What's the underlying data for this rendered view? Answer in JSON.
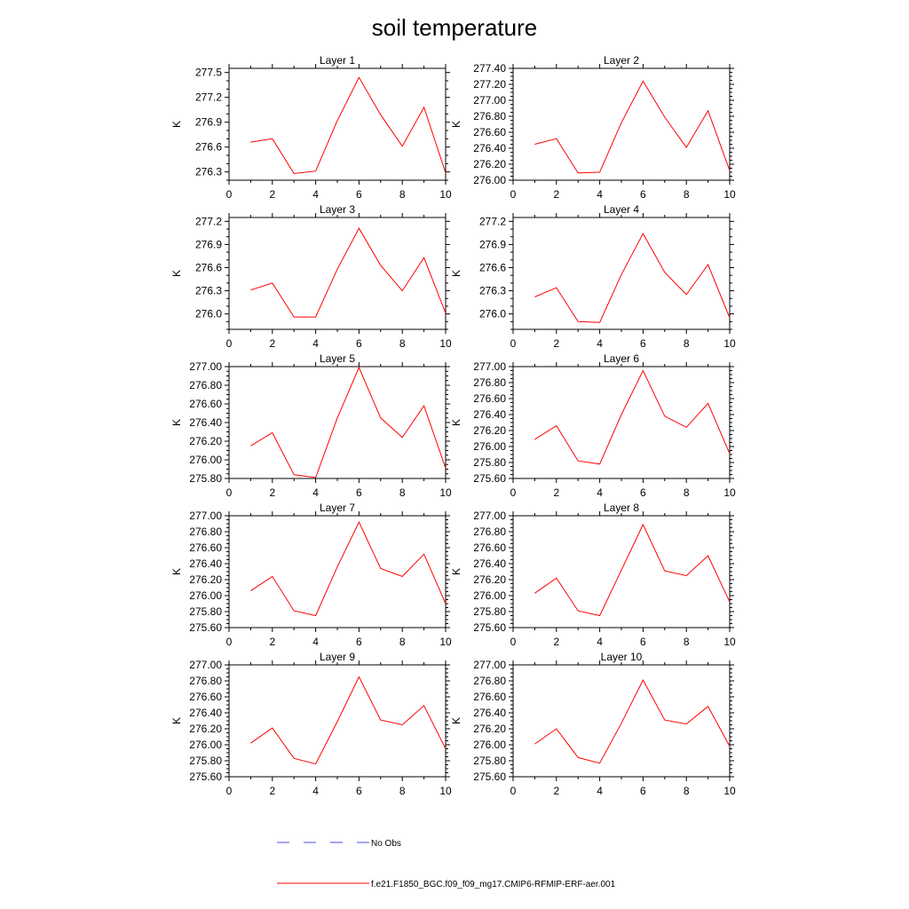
{
  "figure": {
    "title": "soil temperature"
  },
  "chart_data": [
    {
      "type": "line",
      "title": "Layer 1",
      "xlabel": "",
      "ylabel": "K",
      "xlim": [
        0,
        10
      ],
      "xticks": [
        0,
        2,
        4,
        6,
        8,
        10
      ],
      "xminor": 1,
      "ylim": [
        276.2,
        277.55
      ],
      "yticks": [
        276.3,
        276.6,
        276.9,
        277.2,
        277.5
      ],
      "ytick_labels": [
        "276.3",
        "276.6",
        "276.9",
        "277.2",
        "277.5"
      ],
      "yminor": 0.1,
      "series": [
        {
          "x": [
            1,
            2,
            3,
            4,
            5,
            6,
            7,
            8,
            9,
            10
          ],
          "values": [
            276.66,
            276.7,
            276.28,
            276.31,
            276.92,
            277.44,
            276.99,
            276.61,
            277.08,
            276.29
          ]
        }
      ]
    },
    {
      "type": "line",
      "title": "Layer 2",
      "xlabel": "",
      "ylabel": "K",
      "xlim": [
        0,
        10
      ],
      "xticks": [
        0,
        2,
        4,
        6,
        8,
        10
      ],
      "xminor": 1,
      "ylim": [
        276.0,
        277.4
      ],
      "yticks": [
        276.0,
        276.2,
        276.4,
        276.6,
        276.8,
        277.0,
        277.2,
        277.4
      ],
      "ytick_labels": [
        "276.00",
        "276.20",
        "276.40",
        "276.60",
        "276.80",
        "277.00",
        "277.20",
        "277.40"
      ],
      "yminor": 0.05,
      "series": [
        {
          "x": [
            1,
            2,
            3,
            4,
            5,
            6,
            7,
            8,
            9,
            10
          ],
          "values": [
            276.45,
            276.52,
            276.09,
            276.1,
            276.72,
            277.24,
            276.79,
            276.41,
            276.87,
            276.12
          ]
        }
      ]
    },
    {
      "type": "line",
      "title": "Layer 3",
      "xlabel": "",
      "ylabel": "K",
      "xlim": [
        0,
        10
      ],
      "xticks": [
        0,
        2,
        4,
        6,
        8,
        10
      ],
      "xminor": 1,
      "ylim": [
        275.8,
        277.25
      ],
      "yticks": [
        276.0,
        276.3,
        276.6,
        276.9,
        277.2
      ],
      "ytick_labels": [
        "276.0",
        "276.3",
        "276.6",
        "276.9",
        "277.2"
      ],
      "yminor": 0.1,
      "series": [
        {
          "x": [
            1,
            2,
            3,
            4,
            5,
            6,
            7,
            8,
            9,
            10
          ],
          "values": [
            276.31,
            276.4,
            275.96,
            275.96,
            276.58,
            277.11,
            276.63,
            276.3,
            276.73,
            276.01
          ]
        }
      ]
    },
    {
      "type": "line",
      "title": "Layer 4",
      "xlabel": "",
      "ylabel": "K",
      "xlim": [
        0,
        10
      ],
      "xticks": [
        0,
        2,
        4,
        6,
        8,
        10
      ],
      "xminor": 1,
      "ylim": [
        275.8,
        277.25
      ],
      "yticks": [
        276.0,
        276.3,
        276.6,
        276.9,
        277.2
      ],
      "ytick_labels": [
        "276.0",
        "276.3",
        "276.6",
        "276.9",
        "277.2"
      ],
      "yminor": 0.1,
      "series": [
        {
          "x": [
            1,
            2,
            3,
            4,
            5,
            6,
            7,
            8,
            9,
            10
          ],
          "values": [
            276.22,
            276.34,
            275.9,
            275.89,
            276.51,
            277.04,
            276.54,
            276.25,
            276.64,
            275.95
          ]
        }
      ]
    },
    {
      "type": "line",
      "title": "Layer 5",
      "xlabel": "",
      "ylabel": "K",
      "xlim": [
        0,
        10
      ],
      "xticks": [
        0,
        2,
        4,
        6,
        8,
        10
      ],
      "xminor": 1,
      "ylim": [
        275.8,
        277.0
      ],
      "yticks": [
        275.8,
        276.0,
        276.2,
        276.4,
        276.6,
        276.8,
        277.0
      ],
      "ytick_labels": [
        "275.80",
        "276.00",
        "276.20",
        "276.40",
        "276.60",
        "276.80",
        "277.00"
      ],
      "yminor": 0.05,
      "series": [
        {
          "x": [
            1,
            2,
            3,
            4,
            5,
            6,
            7,
            8,
            9,
            10
          ],
          "values": [
            276.15,
            276.29,
            275.84,
            275.81,
            276.45,
            276.99,
            276.45,
            276.24,
            276.58,
            275.91
          ]
        }
      ]
    },
    {
      "type": "line",
      "title": "Layer 6",
      "xlabel": "",
      "ylabel": "K",
      "xlim": [
        0,
        10
      ],
      "xticks": [
        0,
        2,
        4,
        6,
        8,
        10
      ],
      "xminor": 1,
      "ylim": [
        275.6,
        277.0
      ],
      "yticks": [
        275.6,
        275.8,
        276.0,
        276.2,
        276.4,
        276.6,
        276.8,
        277.0
      ],
      "ytick_labels": [
        "275.60",
        "275.80",
        "276.00",
        "276.20",
        "276.40",
        "276.60",
        "276.80",
        "277.00"
      ],
      "yminor": 0.05,
      "series": [
        {
          "x": [
            1,
            2,
            3,
            4,
            5,
            6,
            7,
            8,
            9,
            10
          ],
          "values": [
            276.09,
            276.26,
            275.82,
            275.78,
            276.4,
            276.95,
            276.38,
            276.24,
            276.54,
            275.91
          ]
        }
      ]
    },
    {
      "type": "line",
      "title": "Layer 7",
      "xlabel": "",
      "ylabel": "K",
      "xlim": [
        0,
        10
      ],
      "xticks": [
        0,
        2,
        4,
        6,
        8,
        10
      ],
      "xminor": 1,
      "ylim": [
        275.6,
        277.0
      ],
      "yticks": [
        275.6,
        275.8,
        276.0,
        276.2,
        276.4,
        276.6,
        276.8,
        277.0
      ],
      "ytick_labels": [
        "275.60",
        "275.80",
        "276.00",
        "276.20",
        "276.40",
        "276.60",
        "276.80",
        "277.00"
      ],
      "yminor": 0.05,
      "series": [
        {
          "x": [
            1,
            2,
            3,
            4,
            5,
            6,
            7,
            8,
            9,
            10
          ],
          "values": [
            276.06,
            276.24,
            275.81,
            275.75,
            276.36,
            276.92,
            276.34,
            276.24,
            276.52,
            275.9
          ]
        }
      ]
    },
    {
      "type": "line",
      "title": "Layer 8",
      "xlabel": "",
      "ylabel": "K",
      "xlim": [
        0,
        10
      ],
      "xticks": [
        0,
        2,
        4,
        6,
        8,
        10
      ],
      "xminor": 1,
      "ylim": [
        275.6,
        277.0
      ],
      "yticks": [
        275.6,
        275.8,
        276.0,
        276.2,
        276.4,
        276.6,
        276.8,
        277.0
      ],
      "ytick_labels": [
        "275.60",
        "275.80",
        "276.00",
        "276.20",
        "276.40",
        "276.60",
        "276.80",
        "277.00"
      ],
      "yminor": 0.05,
      "series": [
        {
          "x": [
            1,
            2,
            3,
            4,
            5,
            6,
            7,
            8,
            9,
            10
          ],
          "values": [
            276.03,
            276.22,
            275.81,
            275.75,
            276.32,
            276.89,
            276.31,
            276.25,
            276.5,
            275.92
          ]
        }
      ]
    },
    {
      "type": "line",
      "title": "Layer 9",
      "xlabel": "",
      "ylabel": "K",
      "xlim": [
        0,
        10
      ],
      "xticks": [
        0,
        2,
        4,
        6,
        8,
        10
      ],
      "xminor": 1,
      "ylim": [
        275.6,
        277.0
      ],
      "yticks": [
        275.6,
        275.8,
        276.0,
        276.2,
        276.4,
        276.6,
        276.8,
        277.0
      ],
      "ytick_labels": [
        "275.60",
        "275.80",
        "276.00",
        "276.20",
        "276.40",
        "276.60",
        "276.80",
        "277.00"
      ],
      "yminor": 0.05,
      "series": [
        {
          "x": [
            1,
            2,
            3,
            4,
            5,
            6,
            7,
            8,
            9,
            10
          ],
          "values": [
            276.02,
            276.21,
            275.83,
            275.76,
            276.29,
            276.85,
            276.31,
            276.25,
            276.49,
            275.95
          ]
        }
      ]
    },
    {
      "type": "line",
      "title": "Layer 10",
      "xlabel": "",
      "ylabel": "K",
      "xlim": [
        0,
        10
      ],
      "xticks": [
        0,
        2,
        4,
        6,
        8,
        10
      ],
      "xminor": 1,
      "ylim": [
        275.6,
        277.0
      ],
      "yticks": [
        275.6,
        275.8,
        276.0,
        276.2,
        276.4,
        276.6,
        276.8,
        277.0
      ],
      "ytick_labels": [
        "275.60",
        "275.80",
        "276.00",
        "276.20",
        "276.40",
        "276.60",
        "276.80",
        "277.00"
      ],
      "yminor": 0.05,
      "series": [
        {
          "x": [
            1,
            2,
            3,
            4,
            5,
            6,
            7,
            8,
            9,
            10
          ],
          "values": [
            276.01,
            276.2,
            275.84,
            275.77,
            276.27,
            276.81,
            276.31,
            276.26,
            276.48,
            275.98
          ]
        }
      ]
    }
  ],
  "legend": {
    "items": [
      {
        "label": "No Obs",
        "color": "#4a4ae0",
        "style": "dashed"
      },
      {
        "label": "f.e21.F1850_BGC.f09_f09_mg17.CMIP6-RFMIP-ERF-aer.001",
        "color": "#ff0000",
        "style": "solid"
      }
    ]
  },
  "colors": {
    "line": "#ff0000",
    "axis": "#000000",
    "obs": "#4a4ae0"
  }
}
